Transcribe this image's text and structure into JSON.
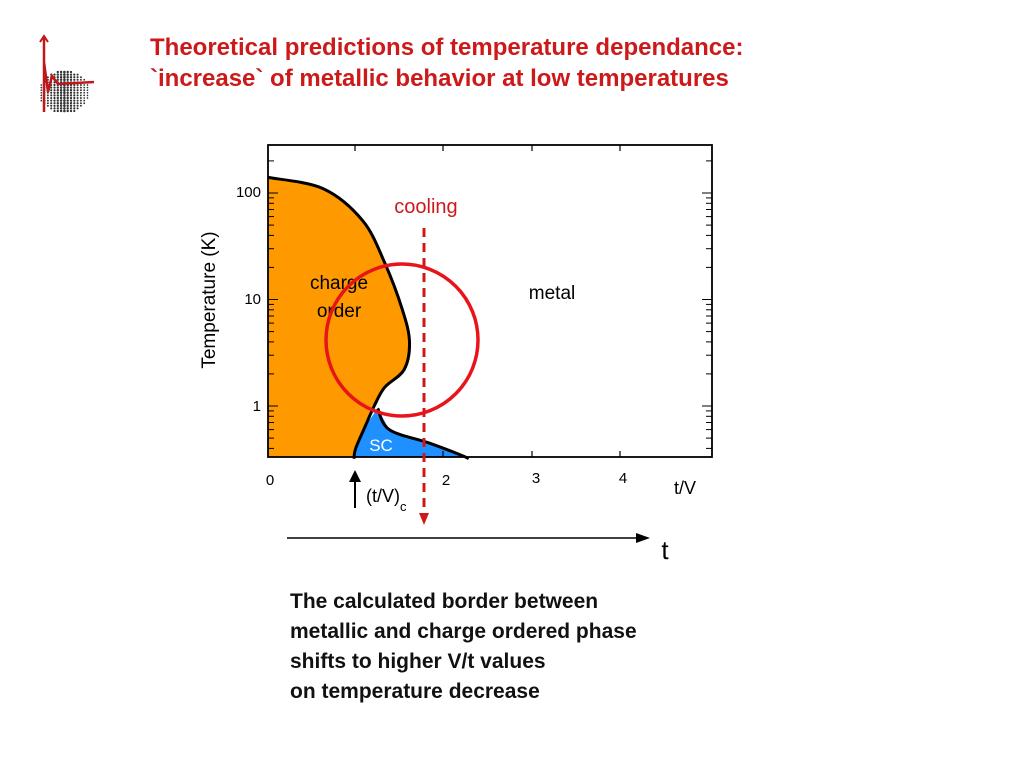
{
  "slide": {
    "title_lines": [
      "Theoretical predictions of temperature dependance:",
      "`increase` of metallic behavior at low temperatures"
    ],
    "caption_lines": [
      "The calculated border between",
      "metallic and charge ordered phase",
      "shifts to higher V/t values",
      "on temperature decrease"
    ]
  },
  "colors": {
    "title": "#cc1a1a",
    "charge_order": "#ff9900",
    "superconductor": "#1e90ff",
    "highlight": "#e8141b"
  },
  "chart_data": {
    "type": "area",
    "xlabel": "t/V",
    "ylabel": "Temperature (K)",
    "xlim": [
      0,
      5
    ],
    "ylim": [
      0.3,
      250
    ],
    "y_scale": "log",
    "x_ticks": [
      "0",
      "2",
      "3",
      "4"
    ],
    "y_ticks": [
      "1",
      "10",
      "100"
    ],
    "regions": [
      {
        "label_lines": [
          "charge",
          "order"
        ],
        "color": "#ff9900"
      },
      {
        "label": "metal"
      },
      {
        "label": "SC",
        "color": "#1e90ff"
      }
    ],
    "charge_order_boundary": {
      "t_over_V": [
        0.0,
        0.6,
        1.05,
        1.3,
        1.5,
        1.58,
        1.52,
        1.3,
        1.18,
        1.08,
        0.97,
        0.95
      ],
      "temperature_K": [
        140,
        110,
        55,
        22,
        8,
        4,
        2.2,
        1.5,
        1.0,
        0.65,
        0.4,
        0.32
      ]
    },
    "sc_boundary": {
      "t_over_V": [
        1.22,
        1.35,
        1.8,
        2.15,
        2.25
      ],
      "temperature_K": [
        0.95,
        0.6,
        0.45,
        0.35,
        0.32
      ]
    },
    "cooling_line": {
      "label": "cooling",
      "t_over_V": 1.75
    },
    "critical_point": {
      "label": "(t/V)",
      "subscript": "c",
      "t_over_V": 0.97
    },
    "t_arrow_label": "t"
  }
}
